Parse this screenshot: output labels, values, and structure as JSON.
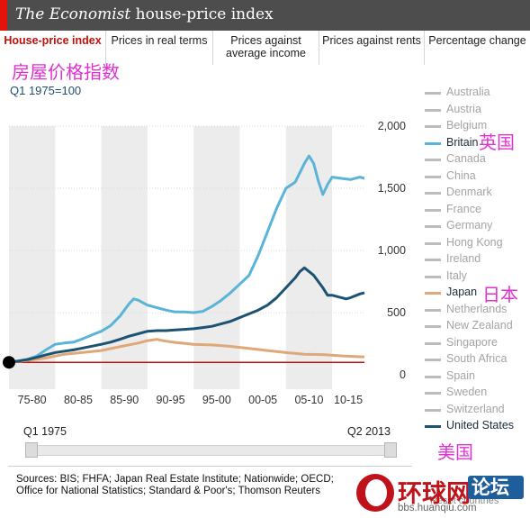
{
  "header": {
    "title_italic": "The Economist",
    "title_rest": "house-price index"
  },
  "tabs": [
    {
      "label": "House-price index",
      "active": true
    },
    {
      "label": "Prices in real terms",
      "active": false
    },
    {
      "label": "Prices against average income",
      "active": false
    },
    {
      "label": "Prices against rents",
      "active": false
    },
    {
      "label": "Percentage change",
      "active": false
    }
  ],
  "annotations": {
    "chart_cn_title": "房屋价格指数",
    "britain_cn": "英国",
    "japan_cn": "日本",
    "us_cn": "美国"
  },
  "subtitle": "Q1 1975=100",
  "colors": {
    "britain": "#5ab4d8",
    "japan": "#e0a878",
    "united_states": "#1c5272",
    "baseline": "#c0100a",
    "inactive": "#bcbcbc",
    "band": "#ececec",
    "accent": "#e3120b"
  },
  "legend": [
    {
      "label": "Australia",
      "active": false,
      "color": "#bcbcbc"
    },
    {
      "label": "Austria",
      "active": false,
      "color": "#bcbcbc"
    },
    {
      "label": "Belgium",
      "active": false,
      "color": "#bcbcbc"
    },
    {
      "label": "Britain",
      "active": true,
      "color": "#5ab4d8"
    },
    {
      "label": "Canada",
      "active": false,
      "color": "#bcbcbc"
    },
    {
      "label": "China",
      "active": false,
      "color": "#bcbcbc"
    },
    {
      "label": "Denmark",
      "active": false,
      "color": "#bcbcbc"
    },
    {
      "label": "France",
      "active": false,
      "color": "#bcbcbc"
    },
    {
      "label": "Germany",
      "active": false,
      "color": "#bcbcbc"
    },
    {
      "label": "Hong Kong",
      "active": false,
      "color": "#bcbcbc"
    },
    {
      "label": "Ireland",
      "active": false,
      "color": "#bcbcbc"
    },
    {
      "label": "Italy",
      "active": false,
      "color": "#bcbcbc"
    },
    {
      "label": "Japan",
      "active": true,
      "color": "#e0a878"
    },
    {
      "label": "Netherlands",
      "active": false,
      "color": "#bcbcbc"
    },
    {
      "label": "New Zealand",
      "active": false,
      "color": "#bcbcbc"
    },
    {
      "label": "Singapore",
      "active": false,
      "color": "#bcbcbc"
    },
    {
      "label": "South Africa",
      "active": false,
      "color": "#bcbcbc"
    },
    {
      "label": "Spain",
      "active": false,
      "color": "#bcbcbc"
    },
    {
      "label": "Sweden",
      "active": false,
      "color": "#bcbcbc"
    },
    {
      "label": "Switzerland",
      "active": false,
      "color": "#bcbcbc"
    },
    {
      "label": "United States",
      "active": true,
      "color": "#1c5272"
    }
  ],
  "slider": {
    "start_label": "Q1 1975",
    "end_label": "Q2 2013"
  },
  "footer": {
    "sources_line1": "Sources: BIS; FHFA; Japan Real Estate Institute; Nationwide; OECD;",
    "sources_line2": "Office for National Statistics; Standard & Poor's; Thomson Reuters",
    "reset_label": "Reset countries"
  },
  "watermark": {
    "name": "环球网",
    "box": "论坛",
    "url": "bbs.huanqiu.com"
  },
  "chart_data": {
    "type": "line",
    "title": "",
    "xlabel": "",
    "ylabel": "",
    "baseline": 100,
    "xlim": [
      1975,
      2013.5
    ],
    "ylim": [
      0,
      2000
    ],
    "yticks": [
      0,
      500,
      1000,
      1500,
      2000
    ],
    "ytick_labels": [
      "0",
      "500",
      "1,000",
      "1,500",
      "2,000"
    ],
    "x_categories": [
      "75-80",
      "80-85",
      "85-90",
      "90-95",
      "95-00",
      "00-05",
      "05-10",
      "10-15"
    ],
    "grid": "alternating vertical bands",
    "legend_position": "right",
    "series": [
      {
        "name": "Britain",
        "color": "#5ab4d8",
        "x": [
          1975,
          1976,
          1977,
          1978,
          1979,
          1980,
          1981,
          1982,
          1983,
          1984,
          1985,
          1986,
          1987,
          1988,
          1988.5,
          1989,
          1989.5,
          1990,
          1991,
          1992,
          1993,
          1994,
          1995,
          1996,
          1997,
          1998,
          1999,
          2000,
          2001,
          2002,
          2003,
          2004,
          2005,
          2006,
          2007,
          2007.5,
          2008,
          2008.5,
          2009,
          2009.5,
          2010,
          2011,
          2012,
          2013,
          2013.5
        ],
        "y": [
          100,
          112,
          125,
          150,
          200,
          245,
          255,
          262,
          290,
          320,
          350,
          395,
          470,
          570,
          610,
          600,
          580,
          560,
          540,
          520,
          505,
          505,
          500,
          510,
          550,
          600,
          660,
          730,
          800,
          960,
          1150,
          1340,
          1500,
          1550,
          1700,
          1760,
          1700,
          1560,
          1450,
          1530,
          1590,
          1580,
          1570,
          1590,
          1580
        ]
      },
      {
        "name": "Japan",
        "color": "#e0a878",
        "x": [
          1975,
          1977,
          1979,
          1981,
          1983,
          1985,
          1987,
          1989,
          1990,
          1991,
          1992,
          1993,
          1995,
          1997,
          1999,
          2001,
          2003,
          2005,
          2007,
          2009,
          2011,
          2013,
          2013.5
        ],
        "y": [
          100,
          115,
          135,
          165,
          180,
          195,
          225,
          255,
          275,
          285,
          270,
          260,
          245,
          240,
          228,
          212,
          195,
          178,
          165,
          162,
          152,
          145,
          143
        ]
      },
      {
        "name": "United States",
        "color": "#1c5272",
        "x": [
          1975,
          1976,
          1977,
          1978,
          1979,
          1980,
          1981,
          1982,
          1983,
          1984,
          1985,
          1986,
          1987,
          1988,
          1989,
          1990,
          1991,
          1992,
          1993,
          1994,
          1995,
          1996,
          1997,
          1998,
          1999,
          2000,
          2001,
          2002,
          2003,
          2004,
          2005,
          2006,
          2006.5,
          2007,
          2008,
          2009,
          2009.5,
          2010,
          2011,
          2011.5,
          2012,
          2013,
          2013.5
        ],
        "y": [
          100,
          110,
          122,
          140,
          160,
          178,
          190,
          200,
          215,
          230,
          245,
          262,
          285,
          310,
          330,
          350,
          355,
          355,
          360,
          365,
          370,
          380,
          390,
          410,
          430,
          460,
          490,
          520,
          560,
          620,
          700,
          780,
          830,
          860,
          800,
          700,
          640,
          640,
          620,
          610,
          620,
          650,
          660
        ]
      }
    ]
  }
}
